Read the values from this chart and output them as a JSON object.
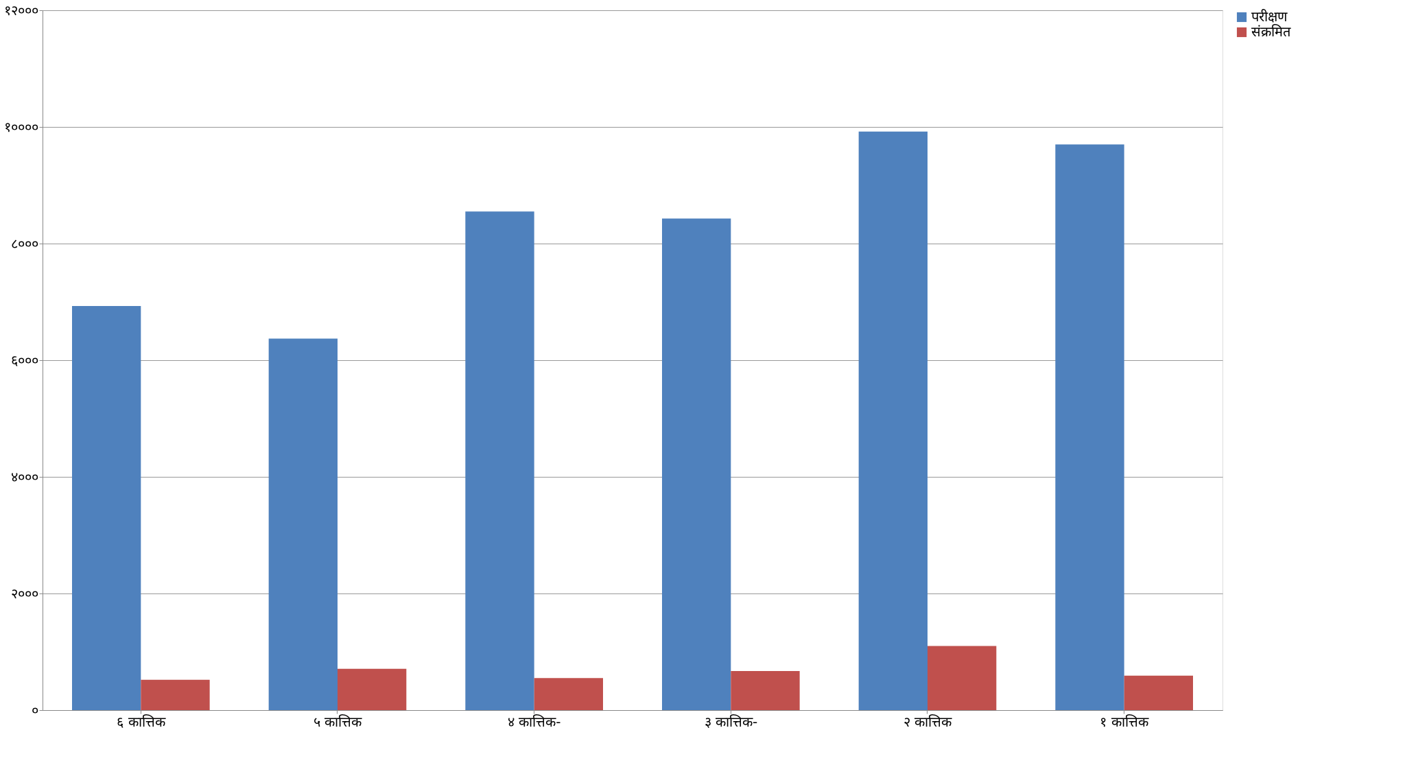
{
  "chart_data": {
    "type": "bar",
    "categories": [
      "६ कात्तिक",
      "५ कात्तिक",
      "४ कात्तिक-",
      "३ कात्तिक-",
      "२ कात्तिक",
      "१ कात्तिक"
    ],
    "series": [
      {
        "name": "परीक्षण",
        "color": "#4f81bd",
        "values": [
          6930,
          6370,
          8550,
          8430,
          9920,
          9700
        ]
      },
      {
        "name": "संक्रमित",
        "color": "#c0504d",
        "values": [
          520,
          710,
          550,
          670,
          1100,
          590
        ]
      }
    ],
    "ylim": [
      0,
      12000
    ],
    "yticks": [
      {
        "value": 0,
        "label": "०"
      },
      {
        "value": 2000,
        "label": "२०००"
      },
      {
        "value": 4000,
        "label": "४०००"
      },
      {
        "value": 6000,
        "label": "६०००"
      },
      {
        "value": 8000,
        "label": "८०००"
      },
      {
        "value": 10000,
        "label": "१००००"
      },
      {
        "value": 12000,
        "label": "१२०००"
      }
    ],
    "grid": "y",
    "legend": "right"
  }
}
